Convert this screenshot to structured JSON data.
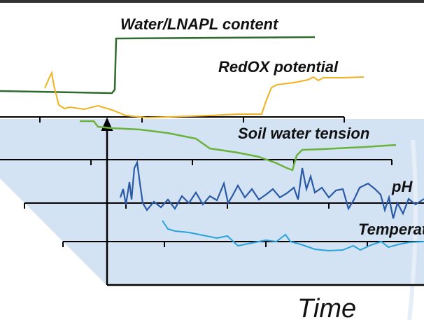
{
  "labels": {
    "water": "Water/LNAPL content",
    "redox": "RedOX potential",
    "soil": "Soil water tension",
    "ph": "pH",
    "temperature": "Temperature",
    "time": "Time"
  }
}
